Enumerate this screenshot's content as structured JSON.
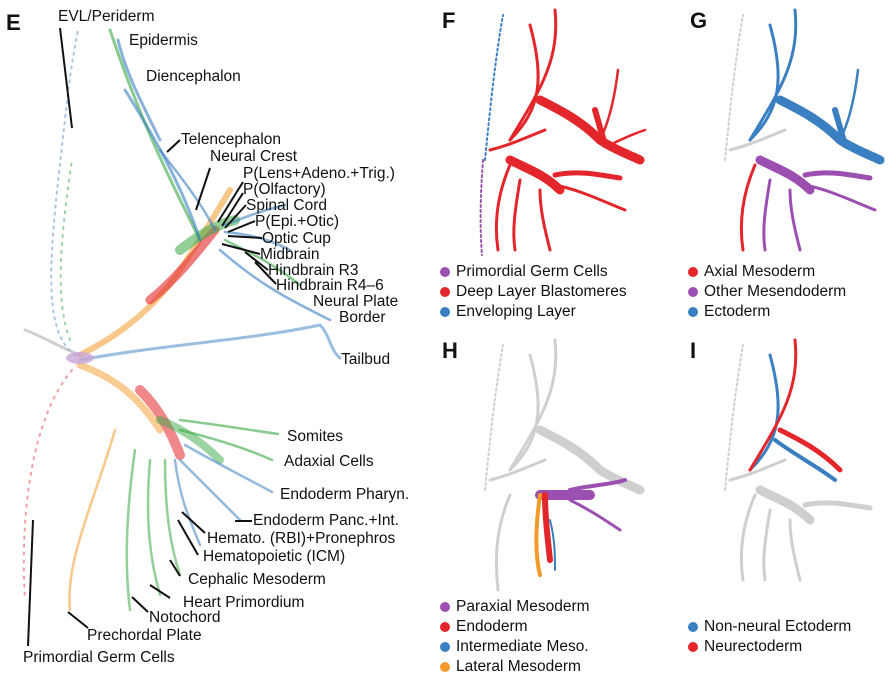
{
  "colors": {
    "red": "#e3262b",
    "purple": "#9b4fb0",
    "blue": "#3a7fc1",
    "orange": "#f39a2a",
    "green": "#3aa845",
    "grey": "#cfcfcf",
    "black": "#111111"
  },
  "panels": {
    "E": {
      "letter": "E",
      "labels": [
        "EVL/Periderm",
        "Epidermis",
        "Diencephalon",
        "Telencephalon",
        "Neural Crest",
        "P(Lens+Adeno.+Trig.)",
        "P(Olfactory)",
        "Spinal Cord",
        "P(Epi.+Otic)",
        "Optic Cup",
        "Midbrain",
        "Hindbrain R3",
        "Hindbrain R4–6",
        "Neural Plate",
        "Border",
        "Tailbud",
        "Somites",
        "Adaxial Cells",
        "Endoderm Pharyn.",
        "Endoderm Panc.+Int.",
        "Hemato. (RBI)+Pronephros",
        "Hematopoietic (ICM)",
        "Cephalic Mesoderm",
        "Heart Primordium",
        "Notochord",
        "Prechordal Plate",
        "Primordial Germ Cells"
      ]
    },
    "F": {
      "letter": "F",
      "legend": [
        {
          "label": "Primordial Germ Cells",
          "color": "#9b4fb0"
        },
        {
          "label": "Deep Layer Blastomeres",
          "color": "#e3262b"
        },
        {
          "label": "Enveloping Layer",
          "color": "#3a7fc1"
        }
      ]
    },
    "G": {
      "letter": "G",
      "legend": [
        {
          "label": "Axial Mesoderm",
          "color": "#e3262b"
        },
        {
          "label": "Other Mesendoderm",
          "color": "#9b4fb0"
        },
        {
          "label": "Ectoderm",
          "color": "#3a7fc1"
        }
      ]
    },
    "H": {
      "letter": "H",
      "legend": [
        {
          "label": "Paraxial Mesoderm",
          "color": "#9b4fb0"
        },
        {
          "label": "Endoderm",
          "color": "#e3262b"
        },
        {
          "label": "Intermediate Meso.",
          "color": "#3a7fc1"
        },
        {
          "label": "Lateral Mesoderm",
          "color": "#f39a2a"
        }
      ]
    },
    "I": {
      "letter": "I",
      "legend": [
        {
          "label": "Non-neural Ectoderm",
          "color": "#3a7fc1"
        },
        {
          "label": "Neurectoderm",
          "color": "#e3262b"
        }
      ]
    }
  }
}
